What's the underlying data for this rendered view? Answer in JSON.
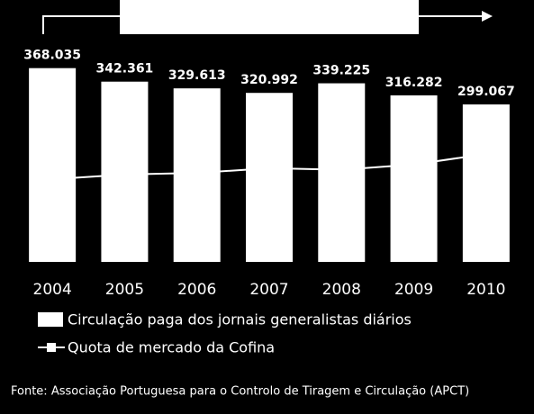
{
  "chart_data": {
    "type": "bar",
    "categories": [
      "2004",
      "2005",
      "2006",
      "2007",
      "2008",
      "2009",
      "2010"
    ],
    "series": [
      {
        "name": "Circulação paga dos jornais generalistas diários",
        "color": "#ffffff",
        "values": [
          368035,
          342361,
          329613,
          320992,
          339225,
          316282,
          299067
        ],
        "value_labels": [
          "368.035",
          "342.361",
          "329.613",
          "320.992",
          "339.225",
          "316.282",
          "299.067"
        ]
      },
      {
        "name": "Quota de mercado da Cofina",
        "color": "#ffffff",
        "type": "line",
        "axis": "y2",
        "values": [
          15.7,
          16.6,
          16.9,
          17.8,
          17.5,
          18.5,
          20.5
        ]
      }
    ],
    "ylim": [
      0,
      400000
    ],
    "y2lim": [
      0,
      40
    ],
    "source": "Fonte: Associação Portuguesa para o Controlo de Tiragem e Circulação (APCT)"
  }
}
